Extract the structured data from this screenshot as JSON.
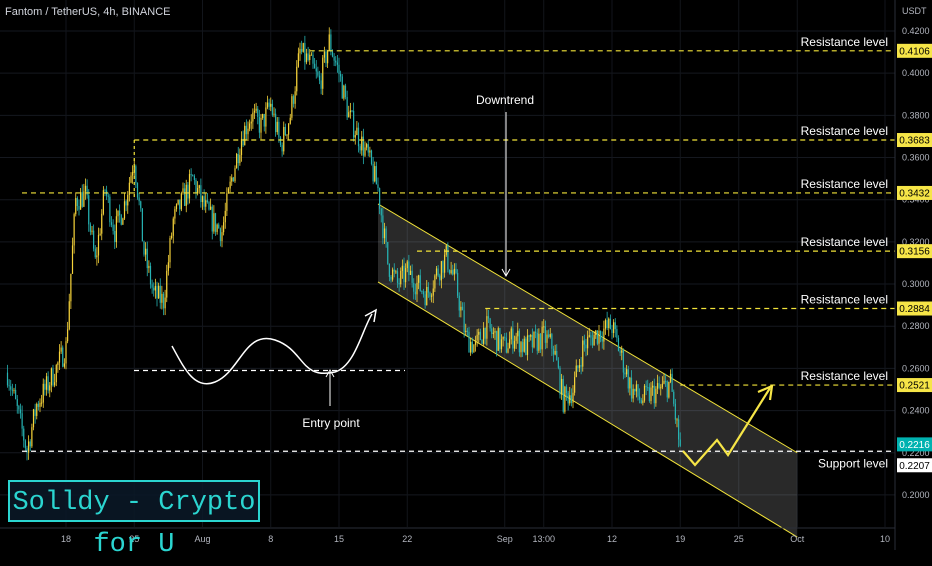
{
  "header": {
    "symbol_line": "Fantom / TetherUS, 4h, BINANCE",
    "unit": "USDT"
  },
  "watermark": "Solldy - Crypto for U",
  "colors": {
    "background": "#000000",
    "bull": "#f6d33a",
    "bear": "#26b3b3",
    "level": "#f2e339",
    "channel": "#f2e339",
    "tag_bg": "#f6e547",
    "support_tag_bg": "#ffffff",
    "current_tag_bg": "#00b2b0"
  },
  "chart_data": {
    "type": "candlestick",
    "symbol": "Fantom / TetherUS",
    "timeframe": "4h",
    "exchange": "BINANCE",
    "ylabel": "USDT",
    "ylim": [
      0.188,
      0.423
    ],
    "y_ticks": [
      0.2,
      0.22,
      0.24,
      0.26,
      0.28,
      0.3,
      0.32,
      0.34,
      0.36,
      0.38,
      0.4,
      0.42
    ],
    "y_tick_labels": [
      "0.2000",
      "0.2200",
      "0.2400",
      "0.2600",
      "0.2800",
      "0.3000",
      "0.3200",
      "0.3400",
      "0.3600",
      "0.3800",
      "0.4000",
      "0.4200"
    ],
    "x_ticks": [
      {
        "label": "18",
        "date": "2022-07-18"
      },
      {
        "label": "25",
        "date": "2022-07-25"
      },
      {
        "label": "Aug",
        "date": "2022-08-01"
      },
      {
        "label": "8",
        "date": "2022-08-08"
      },
      {
        "label": "15",
        "date": "2022-08-15"
      },
      {
        "label": "22",
        "date": "2022-08-22"
      },
      {
        "label": "Sep",
        "date": "2022-09-01"
      },
      {
        "label": "13:00",
        "date": "2022-09-05"
      },
      {
        "label": "12",
        "date": "2022-09-12"
      },
      {
        "label": "19",
        "date": "2022-09-19"
      },
      {
        "label": "25",
        "date": "2022-09-25"
      },
      {
        "label": "Oct",
        "date": "2022-10-01"
      },
      {
        "label": "10",
        "date": "2022-10-10"
      }
    ],
    "price_path": [
      [
        "2022-07-12",
        0.258
      ],
      [
        "2022-07-13",
        0.24
      ],
      [
        "2022-07-14",
        0.221
      ],
      [
        "2022-07-15",
        0.243
      ],
      [
        "2022-07-16",
        0.251
      ],
      [
        "2022-07-17",
        0.26
      ],
      [
        "2022-07-18",
        0.27
      ],
      [
        "2022-07-19",
        0.34
      ],
      [
        "2022-07-20",
        0.342
      ],
      [
        "2022-07-21",
        0.31
      ],
      [
        "2022-07-22",
        0.345
      ],
      [
        "2022-07-23",
        0.325
      ],
      [
        "2022-07-24",
        0.338
      ],
      [
        "2022-07-25",
        0.36
      ],
      [
        "2022-07-26",
        0.315
      ],
      [
        "2022-07-27",
        0.295
      ],
      [
        "2022-07-28",
        0.292
      ],
      [
        "2022-07-29",
        0.33
      ],
      [
        "2022-07-30",
        0.34
      ],
      [
        "2022-07-31",
        0.35
      ],
      [
        "2022-08-01",
        0.338
      ],
      [
        "2022-08-02",
        0.33
      ],
      [
        "2022-08-03",
        0.325
      ],
      [
        "2022-08-04",
        0.35
      ],
      [
        "2022-08-05",
        0.37
      ],
      [
        "2022-08-06",
        0.38
      ],
      [
        "2022-08-07",
        0.375
      ],
      [
        "2022-08-08",
        0.385
      ],
      [
        "2022-08-09",
        0.365
      ],
      [
        "2022-08-10",
        0.38
      ],
      [
        "2022-08-11",
        0.41
      ],
      [
        "2022-08-12",
        0.405
      ],
      [
        "2022-08-13",
        0.395
      ],
      [
        "2022-08-14",
        0.415
      ],
      [
        "2022-08-15",
        0.4
      ],
      [
        "2022-08-16",
        0.38
      ],
      [
        "2022-08-17",
        0.37
      ],
      [
        "2022-08-18",
        0.36
      ],
      [
        "2022-08-19",
        0.345
      ],
      [
        "2022-08-20",
        0.31
      ],
      [
        "2022-08-21",
        0.3
      ],
      [
        "2022-08-22",
        0.306
      ],
      [
        "2022-08-23",
        0.3
      ],
      [
        "2022-08-24",
        0.295
      ],
      [
        "2022-08-25",
        0.305
      ],
      [
        "2022-08-26",
        0.313
      ],
      [
        "2022-08-27",
        0.3
      ],
      [
        "2022-08-28",
        0.275
      ],
      [
        "2022-08-29",
        0.27
      ],
      [
        "2022-08-30",
        0.28
      ],
      [
        "2022-08-31",
        0.275
      ],
      [
        "2022-09-01",
        0.27
      ],
      [
        "2022-09-02",
        0.276
      ],
      [
        "2022-09-03",
        0.27
      ],
      [
        "2022-09-04",
        0.272
      ],
      [
        "2022-09-05",
        0.275
      ],
      [
        "2022-09-06",
        0.27
      ],
      [
        "2022-09-07",
        0.245
      ],
      [
        "2022-09-08",
        0.25
      ],
      [
        "2022-09-09",
        0.27
      ],
      [
        "2022-09-10",
        0.275
      ],
      [
        "2022-09-11",
        0.278
      ],
      [
        "2022-09-12",
        0.28
      ],
      [
        "2022-09-13",
        0.265
      ],
      [
        "2022-09-14",
        0.25
      ],
      [
        "2022-09-15",
        0.245
      ],
      [
        "2022-09-16",
        0.248
      ],
      [
        "2022-09-17",
        0.25
      ],
      [
        "2022-09-18",
        0.253
      ],
      [
        "2022-09-19",
        0.2216
      ]
    ],
    "annotations": {
      "resistance_levels": [
        {
          "label": "Resistance level",
          "value": "0.4106",
          "price": 0.4106
        },
        {
          "label": "Resistance level",
          "value": "0.3683",
          "price": 0.3683
        },
        {
          "label": "Resistance level",
          "value": "0.3432",
          "price": 0.3432
        },
        {
          "label": "Resistance level",
          "value": "0.3156",
          "price": 0.3156
        },
        {
          "label": "Resistance level",
          "value": "0.2884",
          "price": 0.2884
        },
        {
          "label": "Resistance level",
          "value": "0.2521",
          "price": 0.2521
        }
      ],
      "support_level": {
        "label": "Support level",
        "value": "0.2207",
        "price": 0.2207
      },
      "current_price": {
        "value": "0.2216",
        "price": 0.2216
      },
      "entry_point": {
        "label": "Entry point",
        "price": 0.259
      },
      "downtrend": {
        "label": "Downtrend"
      }
    }
  }
}
